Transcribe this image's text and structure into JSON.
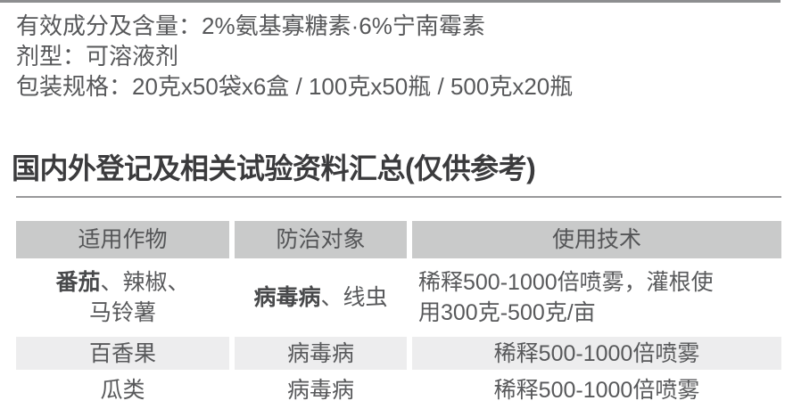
{
  "page": {
    "product_info": {
      "active_ingredient_line": "有效成分及含量：2%氨基寡糖素·6%宁南霉素",
      "formulation_line": "剂型：可溶液剂",
      "packaging_line": "包装规格：20克x50袋x6盒 / 100克x50瓶 / 500克x20瓶"
    },
    "section_title": "国内外登记及相关试验资料汇总(仅供参考)"
  },
  "table": {
    "headers": {
      "crop": "适用作物",
      "target": "防治对象",
      "technique": "使用技术"
    },
    "rows": [
      {
        "crop_bold": "番茄",
        "crop_rest": "、辣椒、\n马铃薯",
        "target_bold": "病毒病",
        "target_rest": "、线虫",
        "technique": "稀释500-1000倍喷雾，灌根使\n用300克-500克/亩"
      },
      {
        "crop_bold": "",
        "crop_rest": "百香果",
        "target_bold": "",
        "target_rest": "病毒病",
        "technique": "稀释500-1000倍喷雾"
      },
      {
        "crop_bold": "",
        "crop_rest": "瓜类",
        "target_bold": "",
        "target_rest": "病毒病",
        "technique": "稀释500-1000倍喷雾"
      }
    ]
  },
  "colors": {
    "header_bg": "#c9caca",
    "alt_row_bg": "#ededee",
    "body_text": "#58595b",
    "title_text": "#3b3b3d",
    "rule": "#8d8e90"
  }
}
